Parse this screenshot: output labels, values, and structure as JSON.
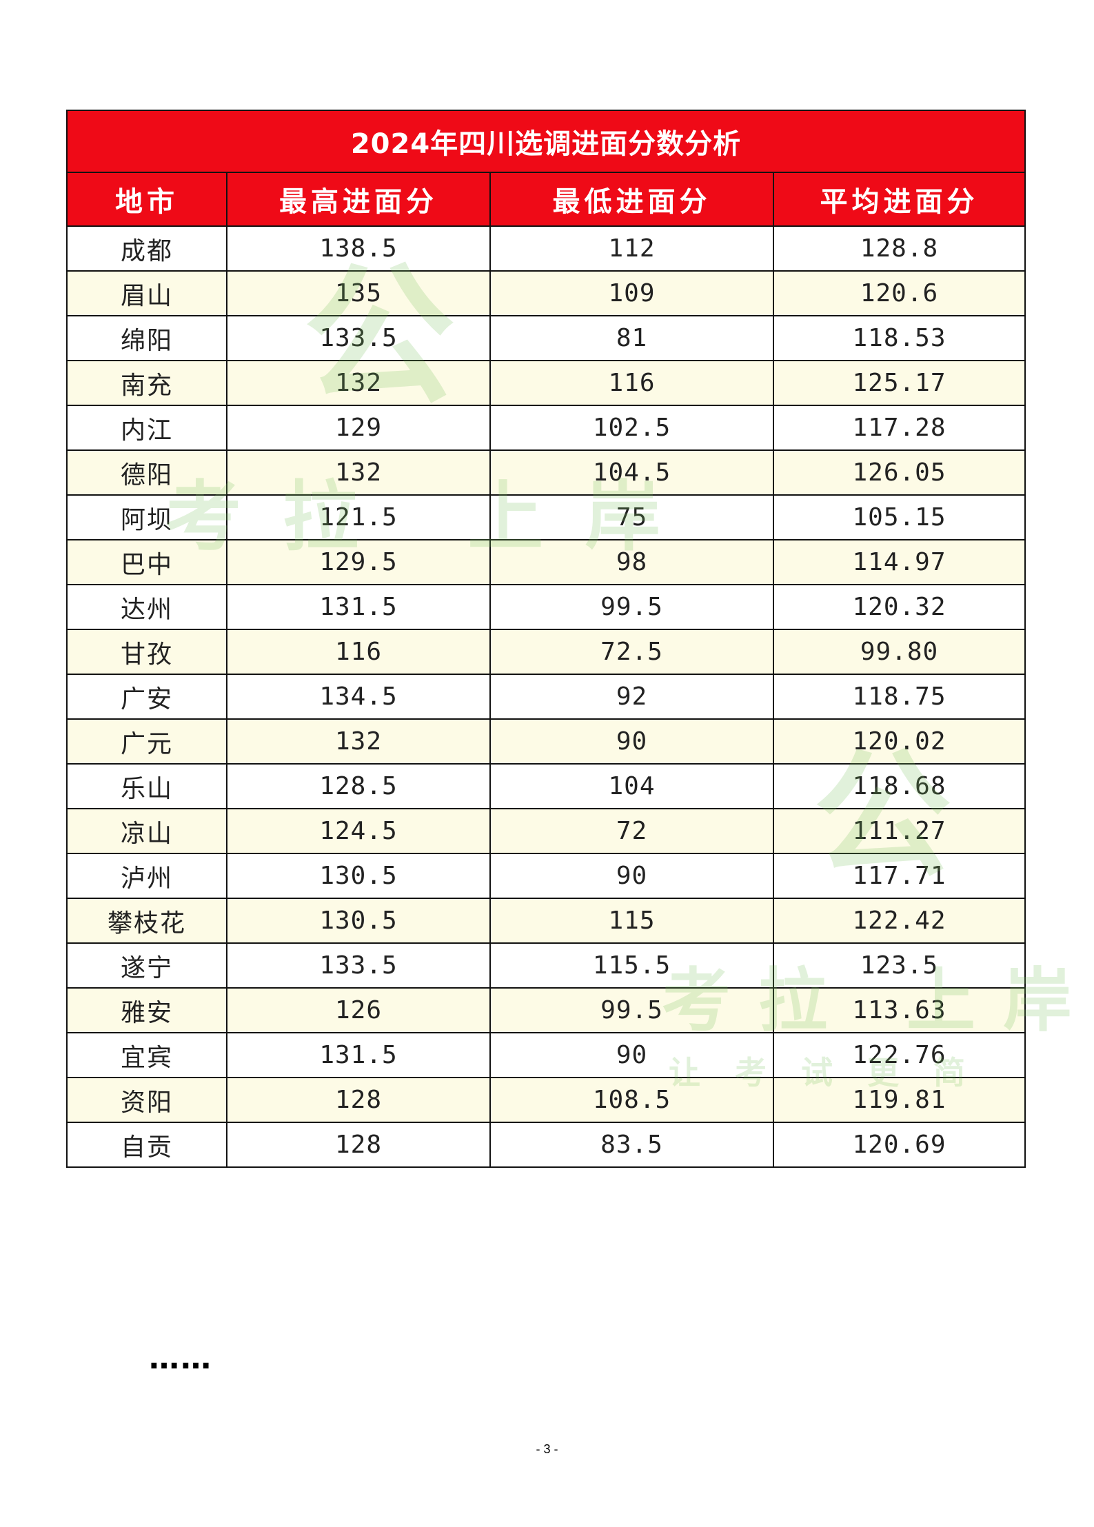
{
  "table": {
    "title": "2024年四川选调进面分数分析",
    "columns": [
      "地市",
      "最高进面分",
      "最低进面分",
      "平均进面分"
    ],
    "rows": [
      [
        "成都",
        "138.5",
        "112",
        "128.8"
      ],
      [
        "眉山",
        "135",
        "109",
        "120.6"
      ],
      [
        "绵阳",
        "133.5",
        "81",
        "118.53"
      ],
      [
        "南充",
        "132",
        "116",
        "125.17"
      ],
      [
        "内江",
        "129",
        "102.5",
        "117.28"
      ],
      [
        "德阳",
        "132",
        "104.5",
        "126.05"
      ],
      [
        "阿坝",
        "121.5",
        "75",
        "105.15"
      ],
      [
        "巴中",
        "129.5",
        "98",
        "114.97"
      ],
      [
        "达州",
        "131.5",
        "99.5",
        "120.32"
      ],
      [
        "甘孜",
        "116",
        "72.5",
        "99.80"
      ],
      [
        "广安",
        "134.5",
        "92",
        "118.75"
      ],
      [
        "广元",
        "132",
        "90",
        "120.02"
      ],
      [
        "乐山",
        "128.5",
        "104",
        "118.68"
      ],
      [
        "凉山",
        "124.5",
        "72",
        "111.27"
      ],
      [
        "泸州",
        "130.5",
        "90",
        "117.71"
      ],
      [
        "攀枝花",
        "130.5",
        "115",
        "122.42"
      ],
      [
        "遂宁",
        "133.5",
        "115.5",
        "123.5"
      ],
      [
        "雅安",
        "126",
        "99.5",
        "113.63"
      ],
      [
        "宜宾",
        "131.5",
        "90",
        "122.76"
      ],
      [
        "资阳",
        "128",
        "108.5",
        "119.81"
      ],
      [
        "自贡",
        "128",
        "83.5",
        "120.69"
      ]
    ]
  },
  "ellipsis": "……",
  "page_number": "- 3 -",
  "watermark": {
    "text_1": "公",
    "text_2": "考拉 上岸",
    "text_3": "公",
    "text_4": "考拉 上岸",
    "text_5": "让考试更简"
  },
  "colors": {
    "header_bg": "#ef0a17",
    "header_text": "#ffffff",
    "alt_row_bg": "#fdfbe6",
    "watermark": "#78be5a"
  }
}
